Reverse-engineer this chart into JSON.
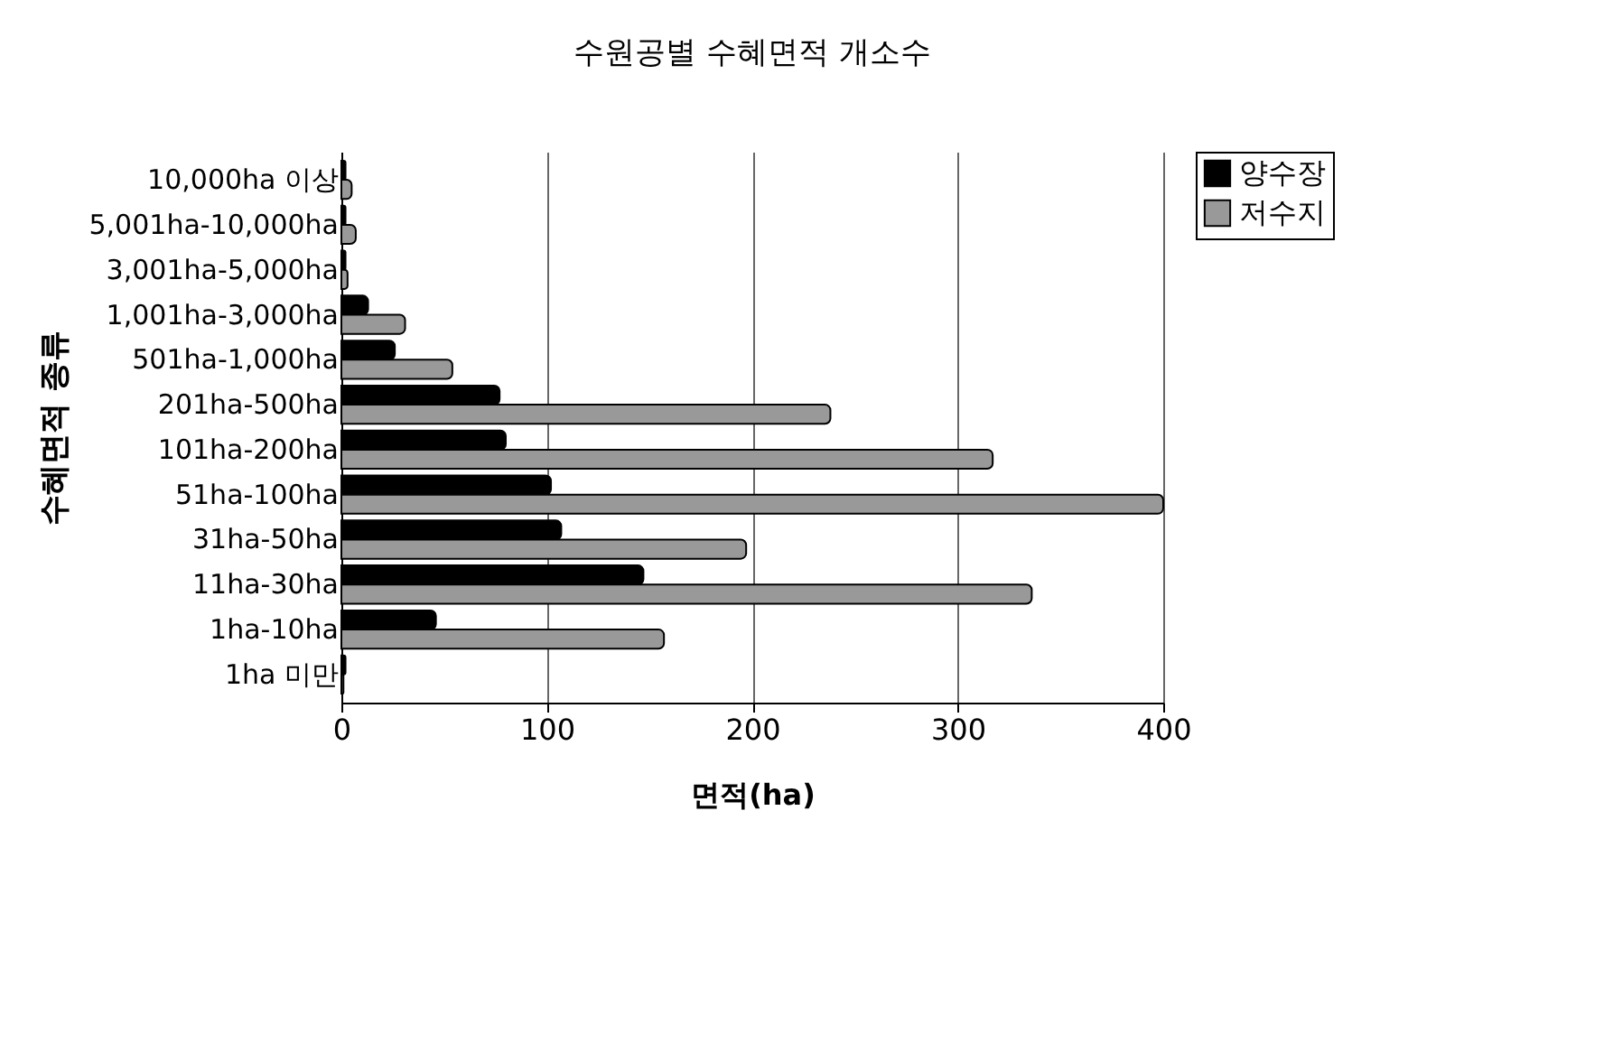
{
  "chart_data": {
    "type": "bar",
    "orientation": "horizontal",
    "title": "수원공별 수혜면적 개소수",
    "xlabel": "면적(ha)",
    "ylabel": "수혜면적 종류",
    "categories": [
      "10,000ha 이상",
      "5,001ha-10,000ha",
      "3,001ha-5,000ha",
      "1,001ha-3,000ha",
      "501ha-1,000ha",
      "201ha-500ha",
      "101ha-200ha",
      "51ha-100ha",
      "31ha-50ha",
      "11ha-30ha",
      "1ha-10ha",
      "1ha 미만"
    ],
    "series": [
      {
        "name": "양수장",
        "color": "#000000",
        "values": [
          2,
          2,
          2,
          13,
          26,
          77,
          80,
          102,
          107,
          147,
          46,
          2
        ]
      },
      {
        "name": "저수지",
        "color": "#999999",
        "values": [
          5,
          7,
          3,
          31,
          54,
          238,
          317,
          400,
          197,
          336,
          157,
          1
        ]
      }
    ],
    "xlim": [
      0,
      400
    ],
    "xticks": [
      0,
      100,
      200,
      300,
      400
    ],
    "grid": "x",
    "legend": "right"
  }
}
